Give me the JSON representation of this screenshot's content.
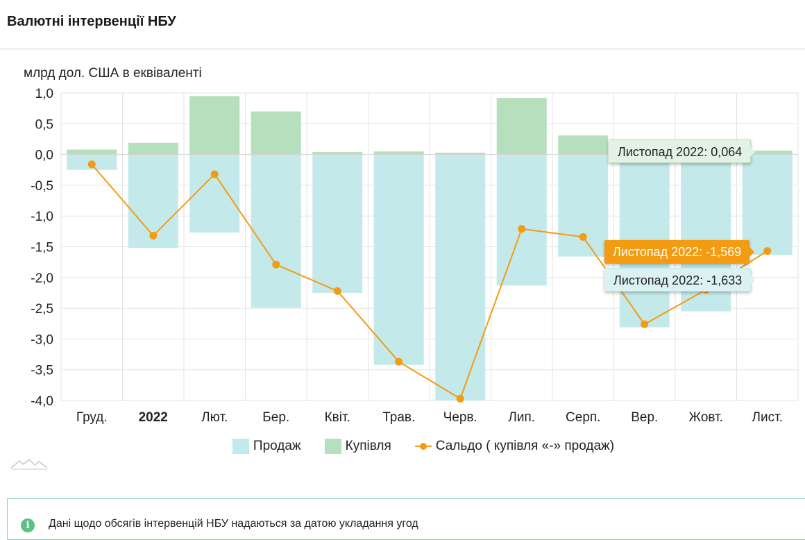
{
  "page": {
    "title": "Валютні інтервенції НБУ"
  },
  "colors": {
    "sale": "#c3e9ea",
    "purchase": "#b6dfbd",
    "balance": "#f39c12",
    "grid": "#e3e3e3"
  },
  "chart_data": {
    "type": "bar",
    "title": "",
    "ylabel": "млрд дол. США в еквіваленті",
    "ylim": [
      -4.0,
      1.0
    ],
    "yticks": [
      "1,0",
      "0,5",
      "0,0",
      "-0,5",
      "-1,0",
      "-1,5",
      "-2,0",
      "-2,5",
      "-3,0",
      "-3,5",
      "-4,0"
    ],
    "ytick_values": [
      1.0,
      0.5,
      0.0,
      -0.5,
      -1.0,
      -1.5,
      -2.0,
      -2.5,
      -3.0,
      -3.5,
      -4.0
    ],
    "categories": [
      "Груд.",
      "2022",
      "Лют.",
      "Бер.",
      "Квіт.",
      "Трав.",
      "Черв.",
      "Лип.",
      "Серп.",
      "Вер.",
      "Жовт.",
      "Лист."
    ],
    "bold_category": "2022",
    "series": [
      {
        "name": "Продаж",
        "kind": "bar",
        "values": [
          -0.25,
          -1.52,
          -1.27,
          -2.49,
          -2.25,
          -3.42,
          -4.0,
          -2.13,
          -1.66,
          -2.81,
          -2.55,
          -1.633
        ]
      },
      {
        "name": "Купівля",
        "kind": "bar",
        "values": [
          0.08,
          0.19,
          0.95,
          0.7,
          0.04,
          0.05,
          0.03,
          0.92,
          0.31,
          0.0,
          0.0,
          0.064
        ]
      },
      {
        "name": "Сальдо ( купівля «-» продаж)",
        "kind": "line",
        "values": [
          -0.16,
          -1.32,
          -0.32,
          -1.79,
          -2.22,
          -3.37,
          -3.97,
          -1.21,
          -1.34,
          -2.76,
          -2.2,
          -1.569
        ]
      }
    ],
    "tooltips": [
      {
        "text": "Листопад 2022: 0,064",
        "series": "Купівля"
      },
      {
        "text": "Листопад 2022: -1,569",
        "series": "Сальдо"
      },
      {
        "text": "Листопад 2022: -1,633",
        "series": "Продаж"
      }
    ],
    "legend": "bottom-center",
    "grid": true
  },
  "info": {
    "text": "Дані щодо обсягів інтервенцій НБУ надаються за датою укладання угод"
  }
}
